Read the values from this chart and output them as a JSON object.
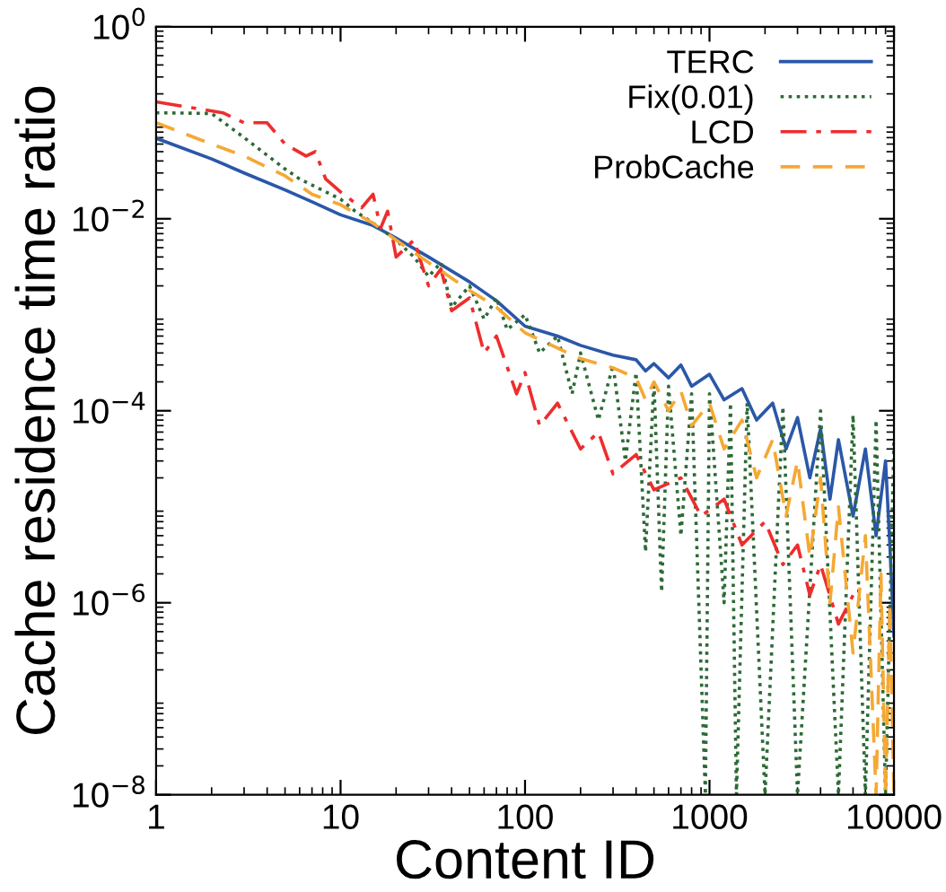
{
  "chart_data": {
    "type": "line",
    "xlabel": "Content ID",
    "ylabel": "Cache residence time ratio",
    "log": "xy",
    "xlim": [
      1,
      10000
    ],
    "xticks": [
      1,
      10,
      100,
      1000,
      10000
    ],
    "ylim": [
      1e-08,
      1
    ],
    "yticks": [
      {
        "value": 1e-08,
        "label": "10$^{−8}$"
      },
      {
        "value": 1e-06,
        "label": "10$^{−6}$"
      },
      {
        "value": 0.0001,
        "label": "10$^{−4}$"
      },
      {
        "value": 0.01,
        "label": "10$^{−2}$"
      },
      {
        "value": 1,
        "label": "10$^{0}$"
      }
    ],
    "grid": false,
    "legend": "top right",
    "series": [
      {
        "name": "TERC",
        "color": "#2a57a8",
        "line_style": "solid",
        "x": [
          1,
          2,
          3,
          5,
          7,
          10,
          15,
          20,
          30,
          50,
          70,
          100,
          150,
          200,
          300,
          400,
          450,
          500,
          600,
          700,
          800,
          1000,
          1200,
          1500,
          1800,
          2200,
          2600,
          3000,
          3500,
          4000,
          4500,
          5000,
          6000,
          7000,
          8000,
          9000,
          9500,
          10000
        ],
        "values": [
          0.069,
          0.042,
          0.03,
          0.02,
          0.015,
          0.011,
          0.0085,
          0.0063,
          0.004,
          0.0022,
          0.0014,
          0.00076,
          0.0006,
          0.00048,
          0.00038,
          0.00034,
          0.00026,
          0.00031,
          0.00022,
          0.0003,
          0.00018,
          0.00024,
          0.00013,
          0.00017,
          8e-05,
          0.00012,
          4e-05,
          8.5e-05,
          2e-05,
          6.5e-05,
          1.2e-05,
          5e-05,
          8e-06,
          4e-05,
          5e-06,
          3e-05,
          4e-06,
          4.5e-07
        ]
      },
      {
        "name": "Fix(0.01)",
        "color": "#2d6a36",
        "line_style": "dotted",
        "x": [
          1,
          2,
          3,
          5,
          6,
          10,
          12,
          15,
          20,
          25,
          30,
          35,
          40,
          50,
          60,
          70,
          80,
          100,
          120,
          150,
          180,
          200,
          250,
          300,
          350,
          400,
          450,
          500,
          550,
          600,
          700,
          800,
          950,
          1000,
          1200,
          1300,
          1400,
          1600,
          2000,
          2500,
          3000,
          4000,
          5000,
          6000,
          7000,
          8000,
          9000,
          10000
        ],
        "values": [
          0.127,
          0.125,
          0.07,
          0.033,
          0.026,
          0.016,
          0.012,
          0.009,
          0.006,
          0.004,
          0.0025,
          0.0035,
          0.0012,
          0.002,
          0.0009,
          0.0015,
          0.0007,
          0.001,
          0.0004,
          0.0006,
          0.00015,
          0.0004,
          8e-05,
          0.0003,
          3e-05,
          0.00025,
          3.4e-06,
          0.0002,
          1.3e-06,
          0.00018,
          5e-06,
          0.00015,
          1e-08,
          0.00015,
          1e-06,
          0.00012,
          1e-08,
          0.00012,
          1e-08,
          0.00011,
          1e-08,
          0.0001,
          1e-08,
          9e-05,
          1e-08,
          8e-05,
          1e-08,
          5e-05
        ]
      },
      {
        "name": "LCD",
        "color": "#ee2d2d",
        "line_style": "dashdot",
        "x": [
          1,
          2.3,
          3,
          4,
          5,
          6.5,
          7.3,
          8.3,
          10,
          13,
          15,
          16.5,
          18,
          20,
          25,
          30,
          35,
          40,
          50,
          60,
          70,
          90,
          100,
          120,
          150,
          200,
          250,
          300,
          400,
          500,
          700,
          900,
          1200,
          1500,
          2000,
          2500,
          3000,
          3500,
          4000,
          5000,
          6000
        ],
        "values": [
          0.165,
          0.127,
          0.1,
          0.1,
          0.06,
          0.045,
          0.05,
          0.026,
          0.019,
          0.013,
          0.018,
          0.008,
          0.012,
          0.004,
          0.006,
          0.002,
          0.003,
          0.0011,
          0.0015,
          0.0004,
          0.0006,
          0.00015,
          0.00025,
          7e-05,
          0.00012,
          4e-05,
          6e-05,
          2.2e-05,
          3.5e-05,
          1.5e-05,
          2e-05,
          8e-06,
          1.2e-05,
          4e-06,
          7e-06,
          2.5e-06,
          4e-06,
          1.2e-06,
          2.5e-06,
          6e-07,
          1.2e-06
        ]
      },
      {
        "name": "ProbCache",
        "color": "#f5a833",
        "line_style": "dashed",
        "x": [
          1,
          2,
          3,
          5,
          7,
          10,
          15,
          20,
          30,
          50,
          70,
          100,
          150,
          200,
          300,
          400,
          450,
          500,
          600,
          700,
          800,
          1000,
          1200,
          1500,
          1800,
          2200,
          2600,
          3000,
          3500,
          4000,
          4500,
          5000,
          6000,
          7000,
          8000,
          8500,
          9000,
          9500,
          10000
        ],
        "values": [
          0.1,
          0.06,
          0.045,
          0.028,
          0.018,
          0.014,
          0.009,
          0.006,
          0.0035,
          0.0018,
          0.0012,
          0.00065,
          0.00045,
          0.00035,
          0.00028,
          0.00022,
          0.00013,
          0.0002,
          0.0001,
          0.00016,
          7e-05,
          0.00012,
          4e-05,
          8e-05,
          2e-05,
          5e-05,
          8e-06,
          3e-05,
          3e-06,
          2e-05,
          1e-06,
          1e-05,
          3e-07,
          5e-06,
          1e-08,
          2e-06,
          1e-08,
          1e-06,
          1e-08
        ]
      }
    ]
  }
}
